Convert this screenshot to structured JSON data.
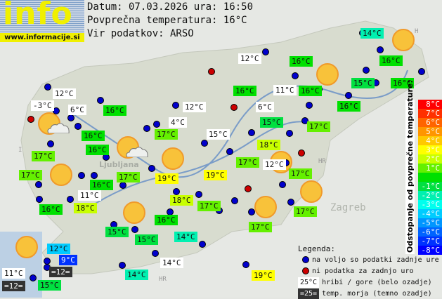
{
  "logo": {
    "text": "info",
    "url": "www.informacije.si"
  },
  "header": {
    "date_line": "Datum: 07.03.2026 ura: 16:50",
    "avg_line": "Povprečna temperatura: 16°C",
    "source_line": "Vir podatkov: ARSO"
  },
  "map_labels": [
    "HR",
    "Zagreb",
    "Ljubljana",
    "I",
    "H"
  ],
  "colors": {
    "white": "#ffffff",
    "dark": "#333333",
    "c8": "#ff0000",
    "c7": "#ff3000",
    "c6": "#ff6400",
    "c5": "#ff9600",
    "c4": "#ffc800",
    "c3": "#ffff00",
    "c2": "#c8ff00",
    "c1": "#64f000",
    "c0": "#00e000",
    "cm1": "#00e040",
    "cm2": "#00f0b0",
    "cm3": "#00ffee",
    "cm4": "#00ccff",
    "cm5": "#0096ff",
    "cm6": "#0064ff",
    "cm7": "#0032ff",
    "cm8": "#0000ff",
    "dot_ok": "#0000cc",
    "dot_missing": "#cc0000"
  },
  "stations": [
    {
      "t": "14°C",
      "bg": "cm2"
    },
    {
      "t": "12°C",
      "bg": "white"
    },
    {
      "t": "16°C",
      "bg": "c0"
    },
    {
      "t": "16°C",
      "bg": "c0"
    },
    {
      "t": "16°C",
      "bg": "c0"
    },
    {
      "t": "11°C",
      "bg": "white"
    },
    {
      "t": "16°C",
      "bg": "c0"
    },
    {
      "t": "15°C",
      "bg": "cm1"
    },
    {
      "t": "16°C",
      "bg": "c0"
    },
    {
      "t": "12°C",
      "bg": "white"
    },
    {
      "t": "-3°C",
      "bg": "white"
    },
    {
      "t": "6°C",
      "bg": "white"
    },
    {
      "t": "16°C",
      "bg": "c0"
    },
    {
      "t": "12°C",
      "bg": "white"
    },
    {
      "t": "6°C",
      "bg": "white"
    },
    {
      "t": "16°C",
      "bg": "c0"
    },
    {
      "t": "15°C",
      "bg": "cm1"
    },
    {
      "t": "4°C",
      "bg": "white"
    },
    {
      "t": "17°C",
      "bg": "c1"
    },
    {
      "t": "17°C",
      "bg": "c1"
    },
    {
      "t": "15°C",
      "bg": "white"
    },
    {
      "t": "16°C",
      "bg": "c0"
    },
    {
      "t": "16°C",
      "bg": "c0"
    },
    {
      "t": "18°C",
      "bg": "c2"
    },
    {
      "t": "17°C",
      "bg": "c1"
    },
    {
      "t": "17°C",
      "bg": "c1"
    },
    {
      "t": "12°C",
      "bg": "white"
    },
    {
      "t": "17°C",
      "bg": "c1"
    },
    {
      "t": "16°C",
      "bg": "c0"
    },
    {
      "t": "17°C",
      "bg": "c1"
    },
    {
      "t": "19°C",
      "bg": "c3"
    },
    {
      "t": "19°C",
      "bg": "c3"
    },
    {
      "t": "17°C",
      "bg": "c1"
    },
    {
      "t": "11°C",
      "bg": "white"
    },
    {
      "t": "18°C",
      "bg": "c2"
    },
    {
      "t": "16°C",
      "bg": "c0"
    },
    {
      "t": "18°C",
      "bg": "c2"
    },
    {
      "t": "17°C",
      "bg": "c1"
    },
    {
      "t": "17°C",
      "bg": "c1"
    },
    {
      "t": "16°C",
      "bg": "c0"
    },
    {
      "t": "15°C",
      "bg": "cm1"
    },
    {
      "t": "15°C",
      "bg": "cm1"
    },
    {
      "t": "14°C",
      "bg": "cm2"
    },
    {
      "t": "17°C",
      "bg": "c1"
    },
    {
      "t": "12°C",
      "bg": "cm4"
    },
    {
      "t": "9°C",
      "bg": "cm7"
    },
    {
      "t": "=12=",
      "bg": "dark"
    },
    {
      "t": "11°C",
      "bg": "white"
    },
    {
      "t": "=12=",
      "bg": "dark"
    },
    {
      "t": "15°C",
      "bg": "cm1"
    },
    {
      "t": "14°C",
      "bg": "cm2"
    },
    {
      "t": "14°C",
      "bg": "white"
    },
    {
      "t": "19°C",
      "bg": "c3"
    }
  ],
  "scale": {
    "title": "Odstopanje od povprečne temperature:",
    "items": [
      {
        "t": "8°C",
        "c": "c8"
      },
      {
        "t": "7°C",
        "c": "c7"
      },
      {
        "t": "6°C",
        "c": "c6"
      },
      {
        "t": "5°C",
        "c": "c5"
      },
      {
        "t": "4°C",
        "c": "c4"
      },
      {
        "t": "3°C",
        "c": "c3"
      },
      {
        "t": "2°C",
        "c": "c2"
      },
      {
        "t": "1°C",
        "c": "c1"
      },
      {
        "t": "",
        "c": "c0"
      },
      {
        "t": "-1°C",
        "c": "cm1"
      },
      {
        "t": "-2°C",
        "c": "cm2"
      },
      {
        "t": "-3°C",
        "c": "cm3"
      },
      {
        "t": "-4°C",
        "c": "cm4"
      },
      {
        "t": "-5°C",
        "c": "cm5"
      },
      {
        "t": "-6°C",
        "c": "cm6"
      },
      {
        "t": "-7°C",
        "c": "cm7"
      },
      {
        "t": "-8°C",
        "c": "cm8"
      }
    ]
  },
  "legend": {
    "title": "Legenda:",
    "ok": "na voljo so podatki zadnje ure",
    "missing": "ni podatka za zadnjo uro",
    "mountain_sample": "25°C",
    "mountain": "hribi / gore (belo ozadje)",
    "sea_sample": "=25=",
    "sea": "temp. morja (temno ozadje)"
  }
}
